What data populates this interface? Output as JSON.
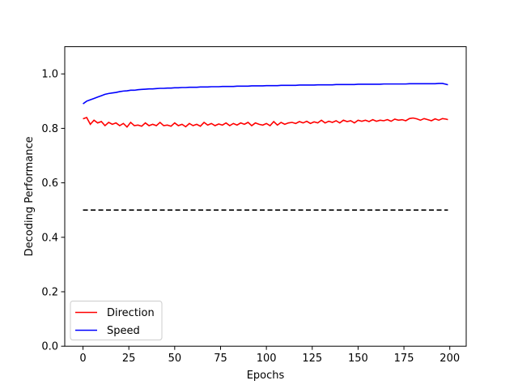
{
  "chart_data": {
    "type": "line",
    "title": "",
    "xlabel": "Epochs",
    "ylabel": "Decoding Performance",
    "xlim": [
      -9.95,
      208.95
    ],
    "ylim": [
      0,
      1.1
    ],
    "xticks": [
      0,
      25,
      50,
      75,
      100,
      125,
      150,
      175,
      200
    ],
    "yticks": [
      0.0,
      0.2,
      0.4,
      0.6,
      0.8,
      1.0
    ],
    "ytick_labels": [
      "0.0",
      "0.2",
      "0.4",
      "0.6",
      "0.8",
      "1.0"
    ],
    "grid": false,
    "legend_position": "lower-left",
    "series": [
      {
        "name": "Direction",
        "color": "#ff0000",
        "x": [
          0,
          2,
          4,
          6,
          8,
          10,
          12,
          14,
          16,
          18,
          20,
          22,
          24,
          26,
          28,
          30,
          32,
          34,
          36,
          38,
          40,
          42,
          44,
          46,
          48,
          50,
          52,
          54,
          56,
          58,
          60,
          62,
          64,
          66,
          68,
          70,
          72,
          74,
          76,
          78,
          80,
          82,
          84,
          86,
          88,
          90,
          92,
          94,
          96,
          98,
          100,
          102,
          104,
          106,
          108,
          110,
          112,
          114,
          116,
          118,
          120,
          122,
          124,
          126,
          128,
          130,
          132,
          134,
          136,
          138,
          140,
          142,
          144,
          146,
          148,
          150,
          152,
          154,
          156,
          158,
          160,
          162,
          164,
          166,
          168,
          170,
          172,
          174,
          176,
          178,
          180,
          182,
          184,
          186,
          188,
          190,
          192,
          194,
          196,
          198,
          199
        ],
        "values": [
          0.835,
          0.84,
          0.815,
          0.83,
          0.82,
          0.825,
          0.81,
          0.822,
          0.815,
          0.82,
          0.81,
          0.818,
          0.805,
          0.822,
          0.81,
          0.812,
          0.808,
          0.82,
          0.81,
          0.815,
          0.81,
          0.822,
          0.81,
          0.812,
          0.808,
          0.82,
          0.81,
          0.815,
          0.806,
          0.818,
          0.81,
          0.815,
          0.808,
          0.822,
          0.812,
          0.818,
          0.81,
          0.816,
          0.812,
          0.82,
          0.81,
          0.818,
          0.812,
          0.82,
          0.815,
          0.822,
          0.81,
          0.82,
          0.815,
          0.812,
          0.818,
          0.81,
          0.825,
          0.812,
          0.822,
          0.815,
          0.82,
          0.822,
          0.818,
          0.825,
          0.82,
          0.826,
          0.818,
          0.824,
          0.82,
          0.83,
          0.82,
          0.826,
          0.822,
          0.828,
          0.82,
          0.83,
          0.825,
          0.828,
          0.82,
          0.83,
          0.826,
          0.83,
          0.825,
          0.832,
          0.826,
          0.83,
          0.828,
          0.832,
          0.826,
          0.834,
          0.83,
          0.832,
          0.828,
          0.836,
          0.838,
          0.835,
          0.83,
          0.836,
          0.832,
          0.828,
          0.835,
          0.83,
          0.836,
          0.834,
          0.832
        ]
      },
      {
        "name": "Speed",
        "color": "#0000ff",
        "x": [
          0,
          2,
          4,
          6,
          8,
          10,
          12,
          14,
          16,
          18,
          20,
          22,
          24,
          26,
          28,
          30,
          32,
          34,
          36,
          38,
          40,
          42,
          44,
          46,
          48,
          50,
          52,
          54,
          56,
          58,
          60,
          62,
          64,
          66,
          68,
          70,
          72,
          74,
          76,
          78,
          80,
          82,
          84,
          86,
          88,
          90,
          92,
          94,
          96,
          98,
          100,
          102,
          104,
          106,
          108,
          110,
          112,
          114,
          116,
          118,
          120,
          122,
          124,
          126,
          128,
          130,
          132,
          134,
          136,
          138,
          140,
          142,
          144,
          146,
          148,
          150,
          152,
          154,
          156,
          158,
          160,
          162,
          164,
          166,
          168,
          170,
          172,
          174,
          176,
          178,
          180,
          182,
          184,
          186,
          188,
          190,
          192,
          194,
          196,
          198,
          199
        ],
        "values": [
          0.89,
          0.9,
          0.905,
          0.91,
          0.915,
          0.92,
          0.925,
          0.928,
          0.93,
          0.932,
          0.935,
          0.937,
          0.938,
          0.94,
          0.94,
          0.942,
          0.943,
          0.944,
          0.945,
          0.945,
          0.946,
          0.947,
          0.947,
          0.948,
          0.948,
          0.949,
          0.949,
          0.95,
          0.95,
          0.951,
          0.951,
          0.951,
          0.952,
          0.952,
          0.952,
          0.953,
          0.953,
          0.953,
          0.954,
          0.954,
          0.954,
          0.954,
          0.955,
          0.955,
          0.955,
          0.955,
          0.956,
          0.956,
          0.956,
          0.956,
          0.957,
          0.957,
          0.957,
          0.957,
          0.958,
          0.958,
          0.958,
          0.958,
          0.958,
          0.959,
          0.959,
          0.959,
          0.959,
          0.959,
          0.96,
          0.96,
          0.96,
          0.96,
          0.96,
          0.961,
          0.961,
          0.961,
          0.961,
          0.961,
          0.961,
          0.962,
          0.962,
          0.962,
          0.962,
          0.962,
          0.962,
          0.962,
          0.963,
          0.963,
          0.963,
          0.963,
          0.963,
          0.963,
          0.963,
          0.964,
          0.964,
          0.964,
          0.964,
          0.964,
          0.964,
          0.964,
          0.964,
          0.965,
          0.965,
          0.962,
          0.96
        ]
      },
      {
        "name": "",
        "color": "#000000",
        "dashed": true,
        "x": [
          0,
          199
        ],
        "values": [
          0.5,
          0.5
        ]
      }
    ]
  }
}
